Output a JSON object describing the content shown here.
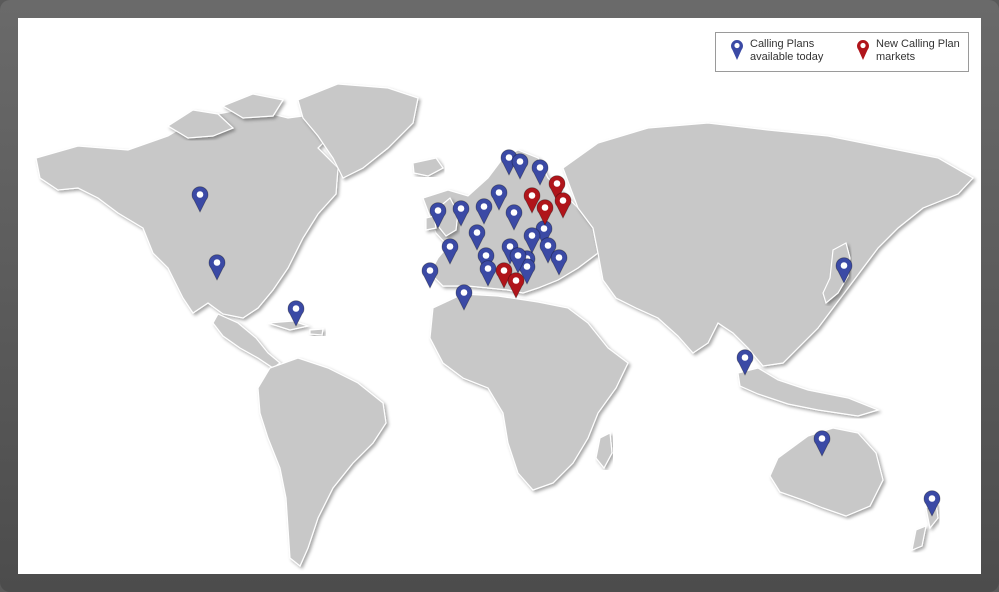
{
  "legend": {
    "existing_label": "Calling Plans available today",
    "new_label": "New Calling Plan markets",
    "existing_color": "#3b4aa5",
    "new_color": "#b0151b"
  },
  "pin_icon": "map-pin-icon",
  "markers": [
    {
      "type": "existing",
      "region": "Canada"
    },
    {
      "type": "existing",
      "region": "United States"
    },
    {
      "type": "existing",
      "region": "Puerto Rico"
    },
    {
      "type": "existing",
      "region": "Portugal"
    },
    {
      "type": "existing",
      "region": "Spain"
    },
    {
      "type": "existing",
      "region": "France"
    },
    {
      "type": "existing",
      "region": "United Kingdom"
    },
    {
      "type": "existing",
      "region": "Ireland"
    },
    {
      "type": "existing",
      "region": "Netherlands"
    },
    {
      "type": "existing",
      "region": "Belgium"
    },
    {
      "type": "existing",
      "region": "Switzerland"
    },
    {
      "type": "existing",
      "region": "Italy"
    },
    {
      "type": "existing",
      "region": "Germany"
    },
    {
      "type": "existing",
      "region": "Denmark"
    },
    {
      "type": "existing",
      "region": "Norway"
    },
    {
      "type": "existing",
      "region": "Sweden"
    },
    {
      "type": "existing",
      "region": "Finland"
    },
    {
      "type": "existing",
      "region": "Poland"
    },
    {
      "type": "existing",
      "region": "Austria"
    },
    {
      "type": "existing",
      "region": "Czech Republic"
    },
    {
      "type": "existing",
      "region": "Hungary"
    },
    {
      "type": "existing",
      "region": "Slovakia"
    },
    {
      "type": "existing",
      "region": "Croatia"
    },
    {
      "type": "existing",
      "region": "Slovenia"
    },
    {
      "type": "existing",
      "region": "Romania"
    },
    {
      "type": "existing",
      "region": "Japan"
    },
    {
      "type": "existing",
      "region": "Singapore"
    },
    {
      "type": "existing",
      "region": "Australia"
    },
    {
      "type": "existing",
      "region": "New Zealand"
    },
    {
      "type": "new",
      "region": "Estonia"
    },
    {
      "type": "new",
      "region": "Latvia"
    },
    {
      "type": "new",
      "region": "Lithuania"
    },
    {
      "type": "new",
      "region": "Bulgaria"
    },
    {
      "type": "new",
      "region": "Serbia"
    },
    {
      "type": "new",
      "region": "Greece"
    }
  ]
}
